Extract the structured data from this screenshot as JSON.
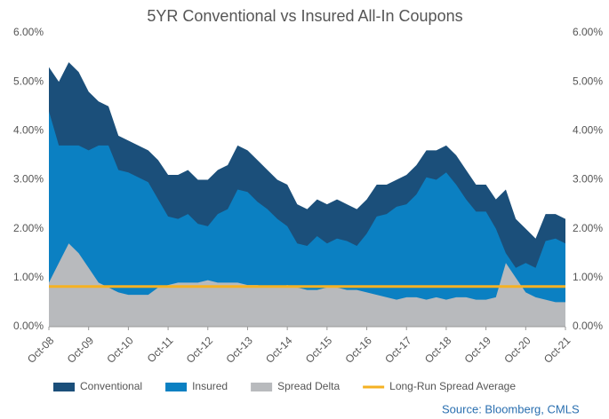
{
  "chart_data": {
    "type": "area",
    "title": "5YR Conventional vs Insured All-In Coupons",
    "source": "Source: Bloomberg, CMLS",
    "categories": [
      "Oct-08",
      null,
      null,
      null,
      "Oct-09",
      null,
      null,
      null,
      "Oct-10",
      null,
      null,
      null,
      "Oct-11",
      null,
      null,
      null,
      "Oct-12",
      null,
      null,
      null,
      "Oct-13",
      null,
      null,
      null,
      "Oct-14",
      null,
      null,
      null,
      "Oct-15",
      null,
      null,
      null,
      "Oct-16",
      null,
      null,
      null,
      "Oct-17",
      null,
      null,
      null,
      "Oct-18",
      null,
      null,
      null,
      "Oct-19",
      null,
      null,
      null,
      "Oct-20",
      null,
      null,
      null,
      "Oct-21"
    ],
    "series": [
      {
        "name": "Conventional",
        "color": "#1b4f7a",
        "values": [
          5.3,
          5.0,
          5.4,
          5.2,
          4.8,
          4.6,
          4.5,
          3.9,
          3.8,
          3.7,
          3.6,
          3.4,
          3.1,
          3.1,
          3.2,
          3.0,
          3.0,
          3.2,
          3.3,
          3.7,
          3.6,
          3.4,
          3.2,
          3.0,
          2.9,
          2.5,
          2.4,
          2.6,
          2.5,
          2.6,
          2.5,
          2.4,
          2.6,
          2.9,
          2.9,
          3.0,
          3.1,
          3.3,
          3.6,
          3.6,
          3.7,
          3.5,
          3.2,
          2.9,
          2.9,
          2.6,
          2.8,
          2.2,
          2.0,
          1.8,
          2.3,
          2.3,
          2.2
        ]
      },
      {
        "name": "Insured",
        "color": "#0b80c2",
        "values": [
          4.4,
          3.7,
          3.7,
          3.7,
          3.6,
          3.7,
          3.7,
          3.2,
          3.15,
          3.05,
          2.95,
          2.6,
          2.25,
          2.2,
          2.3,
          2.1,
          2.05,
          2.3,
          2.4,
          2.8,
          2.75,
          2.55,
          2.4,
          2.2,
          2.05,
          1.7,
          1.65,
          1.85,
          1.7,
          1.8,
          1.75,
          1.65,
          1.9,
          2.25,
          2.3,
          2.45,
          2.5,
          2.7,
          3.05,
          3.0,
          3.15,
          2.9,
          2.6,
          2.35,
          2.35,
          2.0,
          1.5,
          1.2,
          1.3,
          1.2,
          1.75,
          1.8,
          1.7
        ]
      },
      {
        "name": "Spread Delta",
        "color": "#b8babd",
        "values": [
          0.9,
          1.3,
          1.7,
          1.5,
          1.2,
          0.9,
          0.8,
          0.7,
          0.65,
          0.65,
          0.65,
          0.8,
          0.85,
          0.9,
          0.9,
          0.9,
          0.95,
          0.9,
          0.9,
          0.9,
          0.85,
          0.85,
          0.8,
          0.8,
          0.85,
          0.8,
          0.75,
          0.75,
          0.8,
          0.8,
          0.75,
          0.75,
          0.7,
          0.65,
          0.6,
          0.55,
          0.6,
          0.6,
          0.55,
          0.6,
          0.55,
          0.6,
          0.6,
          0.55,
          0.55,
          0.6,
          1.3,
          1.0,
          0.7,
          0.6,
          0.55,
          0.5,
          0.5
        ]
      }
    ],
    "reference_line": {
      "name": "Long-Run Spread Average",
      "value": 0.82,
      "color": "#f5b122"
    },
    "ylim": [
      0,
      6
    ],
    "yticks": [
      {
        "value": 0,
        "label": "0.00%"
      },
      {
        "value": 1,
        "label": "1.00%"
      },
      {
        "value": 2,
        "label": "2.00%"
      },
      {
        "value": 3,
        "label": "3.00%"
      },
      {
        "value": 4,
        "label": "4.00%"
      },
      {
        "value": 5,
        "label": "5.00%"
      },
      {
        "value": 6,
        "label": "6.00%"
      }
    ],
    "y2lim": [
      0,
      6
    ],
    "y2ticks": [
      {
        "value": 0,
        "label": "0.00%"
      },
      {
        "value": 1,
        "label": "1.00%"
      },
      {
        "value": 2,
        "label": "2.00%"
      },
      {
        "value": 3,
        "label": "3.00%"
      },
      {
        "value": 4,
        "label": "4.00%"
      },
      {
        "value": 5,
        "label": "5.00%"
      },
      {
        "value": 6,
        "label": "6.00%"
      }
    ],
    "grid": false,
    "legend": "bottom"
  }
}
